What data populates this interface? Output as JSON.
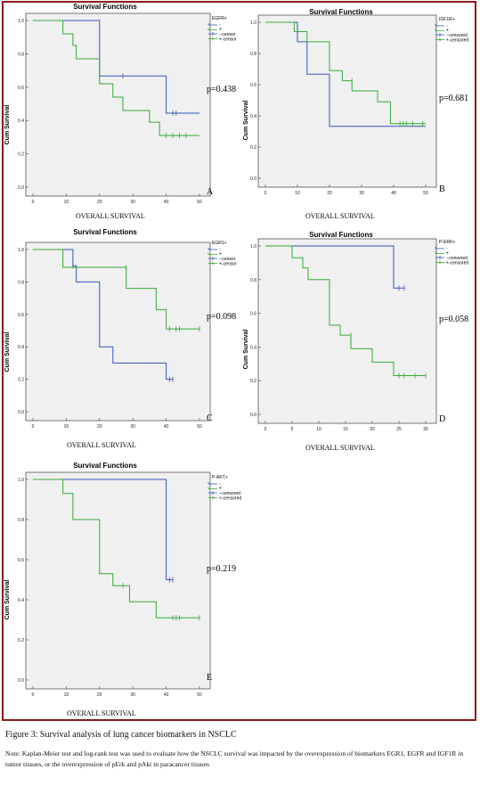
{
  "chart_data": [
    {
      "type": "line",
      "subtype": "kaplan-meier",
      "title": "Survival Functions",
      "xlabel": "OVERALL SURVIVAL",
      "ylabel": "Cum Survival",
      "xticks": [
        "0",
        "10",
        "20",
        "30",
        "40",
        "50"
      ],
      "yticks": [
        "0.0",
        "0.2",
        "0.4",
        "0.6",
        "0.8",
        "1.0"
      ],
      "xlim": [
        0,
        50
      ],
      "ylim": [
        0,
        1
      ],
      "legend_title": "EGFR+",
      "legend": [
        {
          "label": "-",
          "color": "#3355bb",
          "kind": "line"
        },
        {
          "label": "+",
          "color": "#33aa33",
          "kind": "line"
        },
        {
          "label": "--censor",
          "color": "#3355bb",
          "kind": "tick"
        },
        {
          "label": "+-censor",
          "color": "#33aa33",
          "kind": "tick"
        }
      ],
      "p_value": "p=0.438",
      "panel_letter": "A",
      "series": [
        {
          "name": "-",
          "color": "#3355bb",
          "x": [
            0,
            20,
            40,
            50
          ],
          "y": [
            1.0,
            0.667,
            0.444,
            0.444
          ],
          "censor_x": [
            27,
            42,
            43
          ],
          "censor_y": [
            0.667,
            0.444,
            0.444
          ]
        },
        {
          "name": "+",
          "color": "#33aa33",
          "x": [
            0,
            9,
            12,
            13,
            20,
            24,
            27,
            35,
            38,
            40,
            50
          ],
          "y": [
            1.0,
            0.92,
            0.85,
            0.77,
            0.62,
            0.54,
            0.46,
            0.39,
            0.31,
            0.31,
            0.31
          ],
          "censor_x": [
            40,
            42,
            44,
            46
          ],
          "censor_y": [
            0.31,
            0.31,
            0.31,
            0.31
          ]
        }
      ]
    },
    {
      "type": "line",
      "subtype": "kaplan-meier",
      "title": "Survival Functions",
      "xlabel": "OVERALL SURVIVAL",
      "ylabel": "Cum Survival",
      "xticks": [
        "0",
        "10",
        "20",
        "30",
        "40",
        "50"
      ],
      "yticks": [
        "0.0",
        "0.2",
        "0.4",
        "0.6",
        "0.8",
        "1.0"
      ],
      "xlim": [
        0,
        50
      ],
      "ylim": [
        0,
        1
      ],
      "legend_title": "IGF1R+",
      "legend": [
        {
          "label": "-",
          "color": "#3355bb",
          "kind": "line"
        },
        {
          "label": "+",
          "color": "#33aa33",
          "kind": "line"
        },
        {
          "label": "--censored",
          "color": "#3355bb",
          "kind": "tick"
        },
        {
          "label": "+-censored",
          "color": "#33aa33",
          "kind": "tick"
        }
      ],
      "p_value": "p=0.681",
      "panel_letter": "B",
      "series": [
        {
          "name": "-",
          "color": "#3355bb",
          "x": [
            0,
            10,
            13,
            20,
            40,
            50
          ],
          "y": [
            1.0,
            0.875,
            0.667,
            0.333,
            0.333,
            0.333
          ],
          "censor_x": [],
          "censor_y": []
        },
        {
          "name": "+",
          "color": "#33aa33",
          "x": [
            0,
            9,
            13,
            20,
            24,
            27,
            35,
            39,
            50
          ],
          "y": [
            1.0,
            0.94,
            0.875,
            0.69,
            0.625,
            0.56,
            0.49,
            0.35,
            0.35
          ],
          "censor_x": [
            27,
            42,
            43,
            44,
            46,
            49
          ],
          "censor_y": [
            0.625,
            0.35,
            0.35,
            0.35,
            0.35,
            0.35
          ]
        }
      ]
    },
    {
      "type": "line",
      "subtype": "kaplan-meier",
      "title": "Survival Functions",
      "xlabel": "OVERALL SURVIVAL",
      "ylabel": "Cum Survival",
      "xticks": [
        "0",
        "10",
        "20",
        "30",
        "40",
        "50"
      ],
      "yticks": [
        "0.0",
        "0.2",
        "0.4",
        "0.6",
        "0.8",
        "1.0"
      ],
      "xlim": [
        0,
        50
      ],
      "ylim": [
        0,
        1
      ],
      "legend_title": "EGR1+",
      "legend": [
        {
          "label": "-",
          "color": "#3355bb",
          "kind": "line"
        },
        {
          "label": "+",
          "color": "#33aa33",
          "kind": "line"
        },
        {
          "label": "--censor",
          "color": "#3355bb",
          "kind": "tick"
        },
        {
          "label": "+-censor",
          "color": "#33aa33",
          "kind": "tick"
        }
      ],
      "p_value": "p=0.098",
      "panel_letter": "C",
      "series": [
        {
          "name": "-",
          "color": "#3355bb",
          "x": [
            0,
            12,
            13,
            20,
            24,
            40,
            42
          ],
          "y": [
            1.0,
            0.9,
            0.8,
            0.4,
            0.3,
            0.2,
            0.2
          ],
          "censor_x": [
            12,
            41,
            42
          ],
          "censor_y": [
            0.9,
            0.2,
            0.2
          ]
        },
        {
          "name": "+",
          "color": "#33aa33",
          "x": [
            0,
            9,
            28,
            37,
            40,
            50
          ],
          "y": [
            1.0,
            0.89,
            0.76,
            0.63,
            0.51,
            0.51
          ],
          "censor_x": [
            28,
            41,
            43,
            44,
            50
          ],
          "censor_y": [
            0.89,
            0.51,
            0.51,
            0.51,
            0.51
          ]
        }
      ]
    },
    {
      "type": "line",
      "subtype": "kaplan-meier",
      "title": "Survival Functions",
      "xlabel": "OVERALL SURVIVAL",
      "ylabel": "Cum Survival",
      "xticks": [
        "0",
        "5",
        "10",
        "15",
        "20",
        "25",
        "30"
      ],
      "yticks": [
        "0.0",
        "0.2",
        "0.4",
        "0.6",
        "0.8",
        "1.0"
      ],
      "xlim": [
        0,
        30
      ],
      "ylim": [
        0,
        1
      ],
      "legend_title": "P-ERK+",
      "legend": [
        {
          "label": "-",
          "color": "#3355bb",
          "kind": "line"
        },
        {
          "label": "+",
          "color": "#33aa33",
          "kind": "line"
        },
        {
          "label": "--censored",
          "color": "#3355bb",
          "kind": "tick"
        },
        {
          "label": "+-censored",
          "color": "#33aa33",
          "kind": "tick"
        }
      ],
      "p_value": "p=0.058",
      "panel_letter": "D",
      "series": [
        {
          "name": "-",
          "color": "#3355bb",
          "x": [
            0,
            24,
            26
          ],
          "y": [
            1.0,
            0.75,
            0.75
          ],
          "censor_x": [
            25,
            26
          ],
          "censor_y": [
            0.75,
            0.75
          ]
        },
        {
          "name": "+",
          "color": "#33aa33",
          "x": [
            0,
            5,
            7,
            8,
            12,
            14,
            16,
            20,
            24,
            30
          ],
          "y": [
            1.0,
            0.93,
            0.87,
            0.8,
            0.53,
            0.47,
            0.39,
            0.31,
            0.23,
            0.23
          ],
          "censor_x": [
            16,
            25,
            26,
            28,
            30
          ],
          "censor_y": [
            0.47,
            0.23,
            0.23,
            0.23,
            0.23
          ]
        }
      ]
    },
    {
      "type": "line",
      "subtype": "kaplan-meier",
      "title": "Survival Functions",
      "xlabel": "OVERALL SURVIVAL",
      "ylabel": "Cum Survival",
      "xticks": [
        "0",
        "10",
        "20",
        "30",
        "40",
        "50"
      ],
      "yticks": [
        "0.0",
        "0.2",
        "0.4",
        "0.6",
        "0.8",
        "1.0"
      ],
      "xlim": [
        0,
        50
      ],
      "ylim": [
        0,
        1
      ],
      "legend_title": "P-AKT+",
      "legend": [
        {
          "label": "-",
          "color": "#3355bb",
          "kind": "line"
        },
        {
          "label": "+",
          "color": "#33aa33",
          "kind": "line"
        },
        {
          "label": "--censored",
          "color": "#3355bb",
          "kind": "tick"
        },
        {
          "label": "+-censored",
          "color": "#33aa33",
          "kind": "tick"
        }
      ],
      "p_value": "p=0.219",
      "panel_letter": "E",
      "series": [
        {
          "name": "-",
          "color": "#3355bb",
          "x": [
            0,
            40,
            42
          ],
          "y": [
            1.0,
            0.5,
            0.5
          ],
          "censor_x": [
            41,
            42
          ],
          "censor_y": [
            0.5,
            0.5
          ]
        },
        {
          "name": "+",
          "color": "#33aa33",
          "x": [
            0,
            9,
            12,
            20,
            24,
            29,
            37,
            50
          ],
          "y": [
            1.0,
            0.93,
            0.8,
            0.53,
            0.47,
            0.39,
            0.31,
            0.31
          ],
          "censor_x": [
            27,
            42,
            43,
            44,
            50
          ],
          "censor_y": [
            0.47,
            0.31,
            0.31,
            0.31,
            0.31
          ]
        }
      ]
    }
  ],
  "figure": {
    "caption": "Figure 3: Survival analysis of lung cancer biomarkers in NSCLC",
    "note": "Note: Kaplan-Meier test and log-rank test was used to evaluate how the NSCLC survival was impacted by the overexpression of biomarkers EGR1, EGFR and IGF1R in tumor tissues,  or the overexpression of pErk and pAkt in paracancer tissues"
  }
}
